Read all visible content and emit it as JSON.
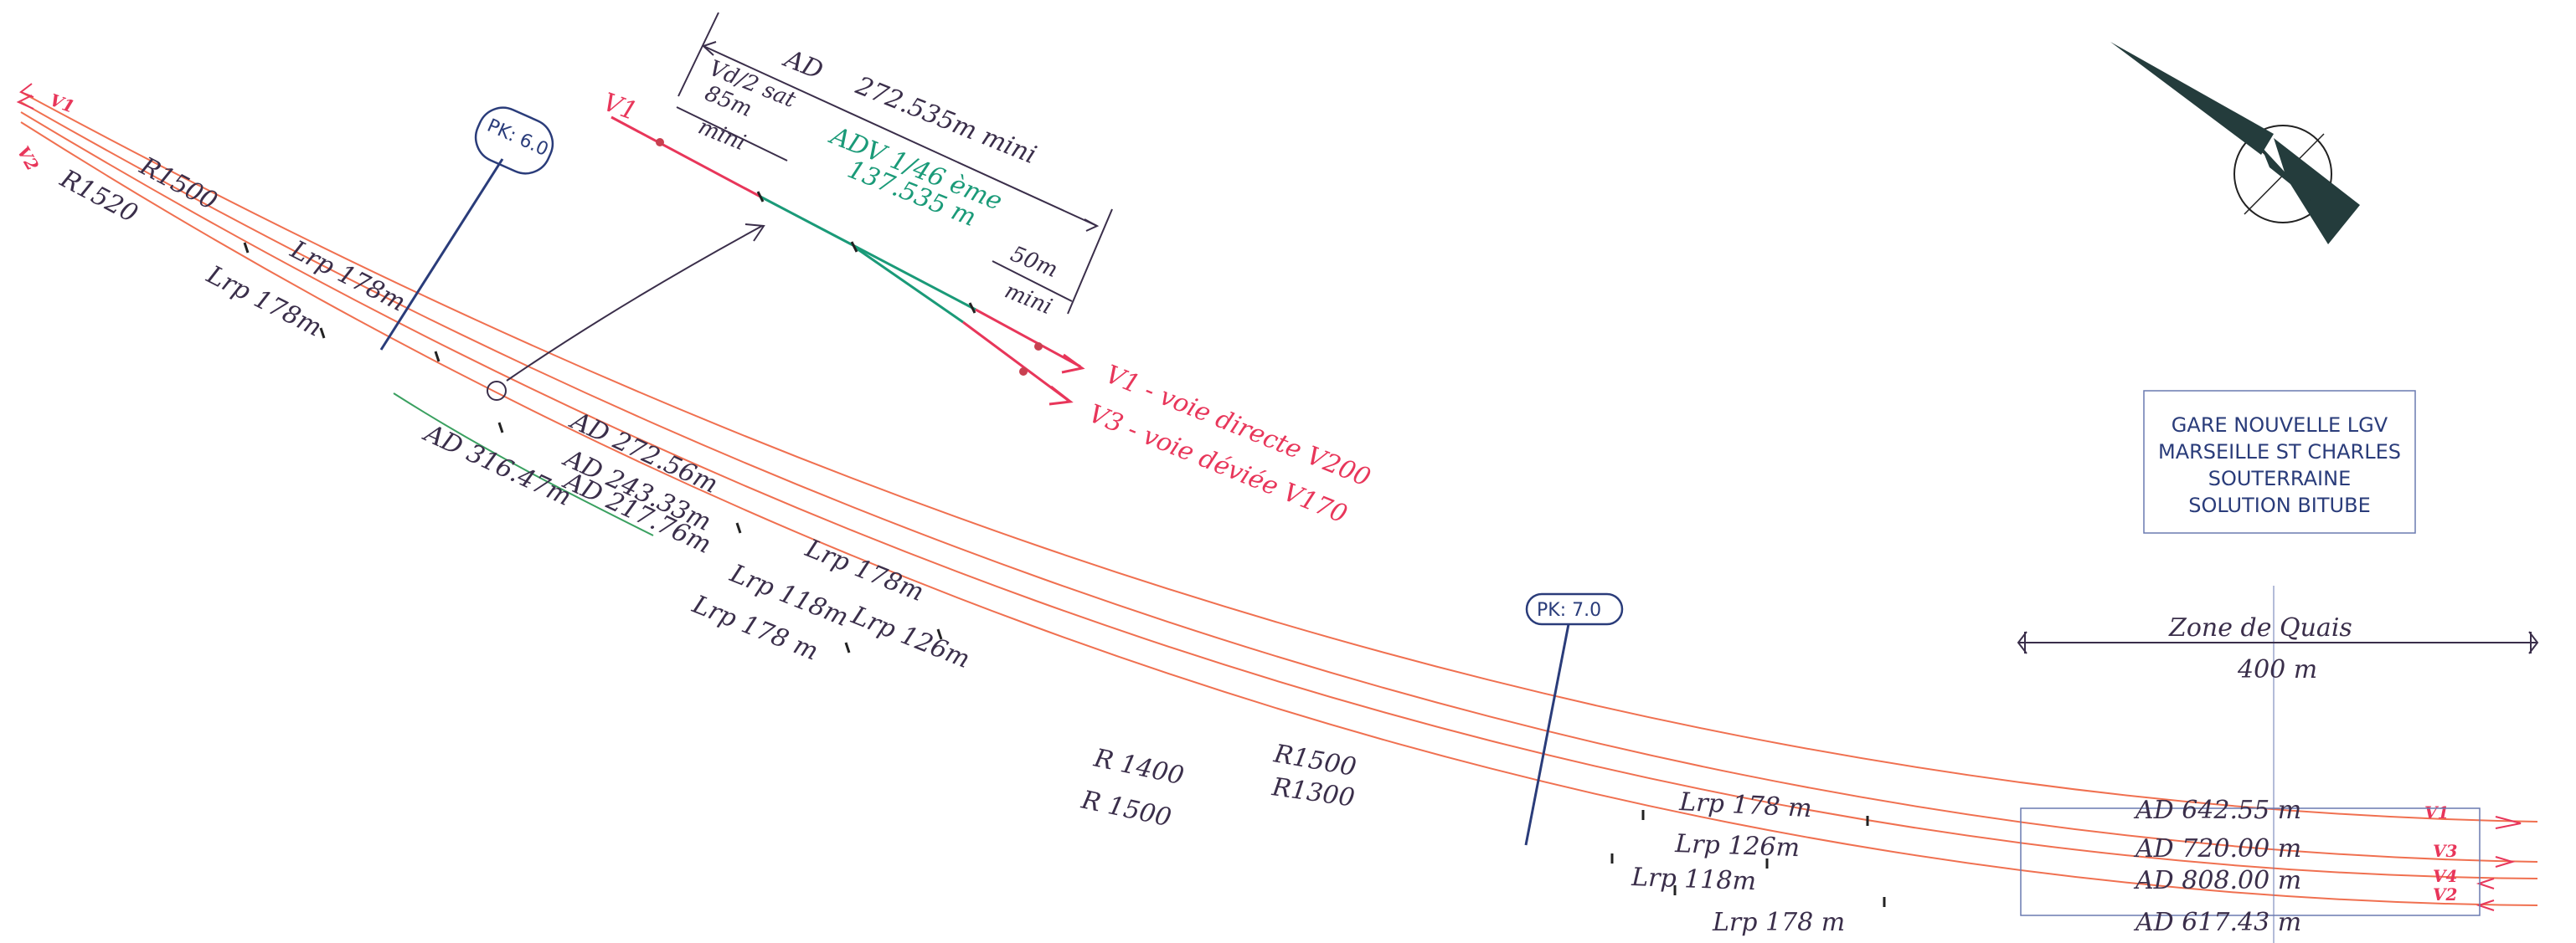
{
  "colors": {
    "track": "#f07050",
    "track_green": "#3aa060",
    "red_ink": "#e8365a",
    "green_ink": "#1a9a78",
    "dark_ink": "#3a2e4a",
    "navy": "#2a3c7a",
    "compass": "#243c3c"
  },
  "labels": {
    "v1_left": "V1",
    "v2_left": "V2",
    "r1500_top": "R1500",
    "r1520": "R1520",
    "lrp178_a": "Lrp 178m",
    "lrp178_b": "Lrp 178m",
    "pk60": "PK: 6.0",
    "pk70": "PK: 7.0",
    "ad27256": "AD 272.56m",
    "ad24333": "AD 243.33m",
    "ad21776": "AD 217.76m",
    "ad31647": "AD 316.47m",
    "lrp178_c": "Lrp 178m",
    "lrp118_a": "Lrp 118m",
    "lrp126_a": "Lrp 126m",
    "lrp178_d": "Lrp 178 m",
    "r1400": "R 1400",
    "r1500_mid": "R1500",
    "r1300": "R1300",
    "r1500_low": "R 1500",
    "lrp178_e": "Lrp 178 m",
    "lrp126_b": "Lrp 126m",
    "lrp118_b": "Lrp 118m",
    "lrp178_f": "Lrp 178 m",
    "ad64255": "AD    642.55 m",
    "ad72000": "AD    720.00 m",
    "ad80800": "AD    808.00 m",
    "ad61743": "AD    617.43 m",
    "v1_right": "V1",
    "v3_right": "V3",
    "v4_right": "V4",
    "v2_right": "V2",
    "zone_quais": "Zone de Quais",
    "zone_len": "400 m"
  },
  "inset": {
    "v1": "V1",
    "ad": "AD",
    "ad_len": "272.535m mini",
    "vd2": "Vd/2 sat",
    "m85": "85m",
    "mini_a": "mini",
    "adv": "ADV 1/46 ème",
    "adv_len": "137.535 m",
    "m50": "50m",
    "mini_b": "mini",
    "v1_desc": "V1 - voie directe V200",
    "v3_desc": "V3 - voie déviée V170"
  },
  "station": {
    "line1": "GARE NOUVELLE LGV",
    "line2": "MARSEILLE ST CHARLES",
    "line3": "SOUTERRAINE",
    "line4": "SOLUTION BITUBE"
  },
  "icons": {
    "compass": "north-arrow-icon"
  }
}
